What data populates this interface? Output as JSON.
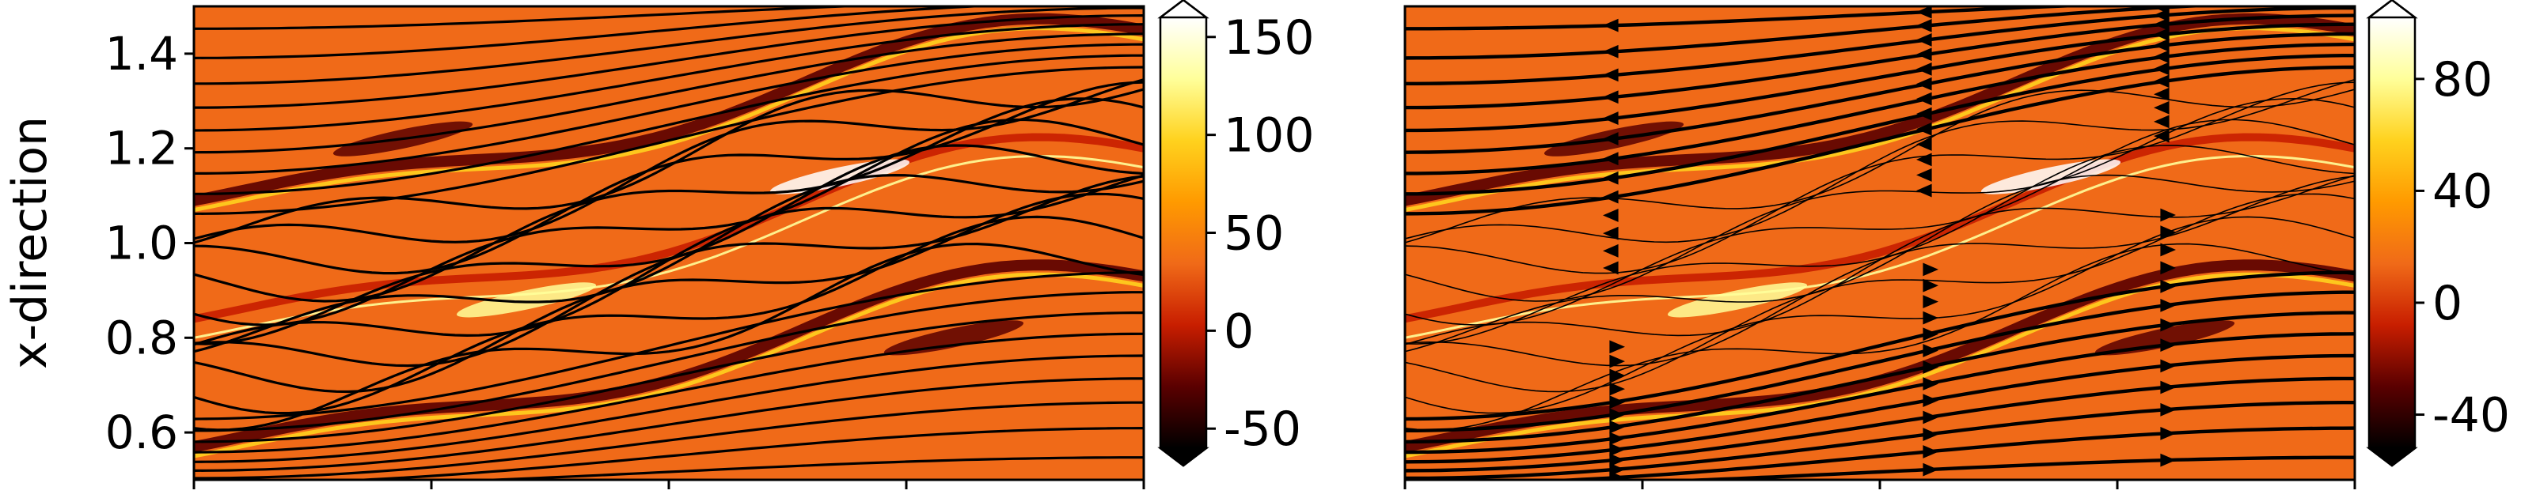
{
  "chart_data": [
    {
      "type": "heatmap",
      "title": "",
      "xlabel": "",
      "ylabel": "x-direction",
      "ylim": [
        0.5,
        1.5
      ],
      "yticks": [
        "0.6",
        "0.8",
        "1.0",
        "1.2",
        "1.4"
      ],
      "ytick_values": [
        0.6,
        0.8,
        1.0,
        1.2,
        1.4
      ],
      "xticks_count": 5,
      "overlay": "streamlines",
      "colorbar": {
        "ticks": [
          "-50",
          "0",
          "50",
          "100",
          "150"
        ],
        "tick_values": [
          -50,
          0,
          50,
          100,
          150
        ],
        "range": [
          -60,
          160
        ],
        "extend": "both"
      }
    },
    {
      "type": "heatmap",
      "title": "",
      "xlabel": "",
      "ylabel": "",
      "ylim": [
        0.5,
        1.5
      ],
      "xticks_count": 5,
      "overlay": "streamlines with arrows",
      "colorbar": {
        "ticks": [
          "-40",
          "0",
          "40",
          "80"
        ],
        "tick_values": [
          -40,
          0,
          40,
          80
        ],
        "range": [
          -52,
          102
        ],
        "extend": "both"
      }
    }
  ],
  "colors": {
    "colormap": [
      "#000000",
      "#5a0000",
      "#c81e00",
      "#f06a18",
      "#ff9a00",
      "#ffd21e",
      "#ffff9a",
      "#ffffff"
    ],
    "background_field": "#f06a18",
    "streamline": "#000000"
  }
}
